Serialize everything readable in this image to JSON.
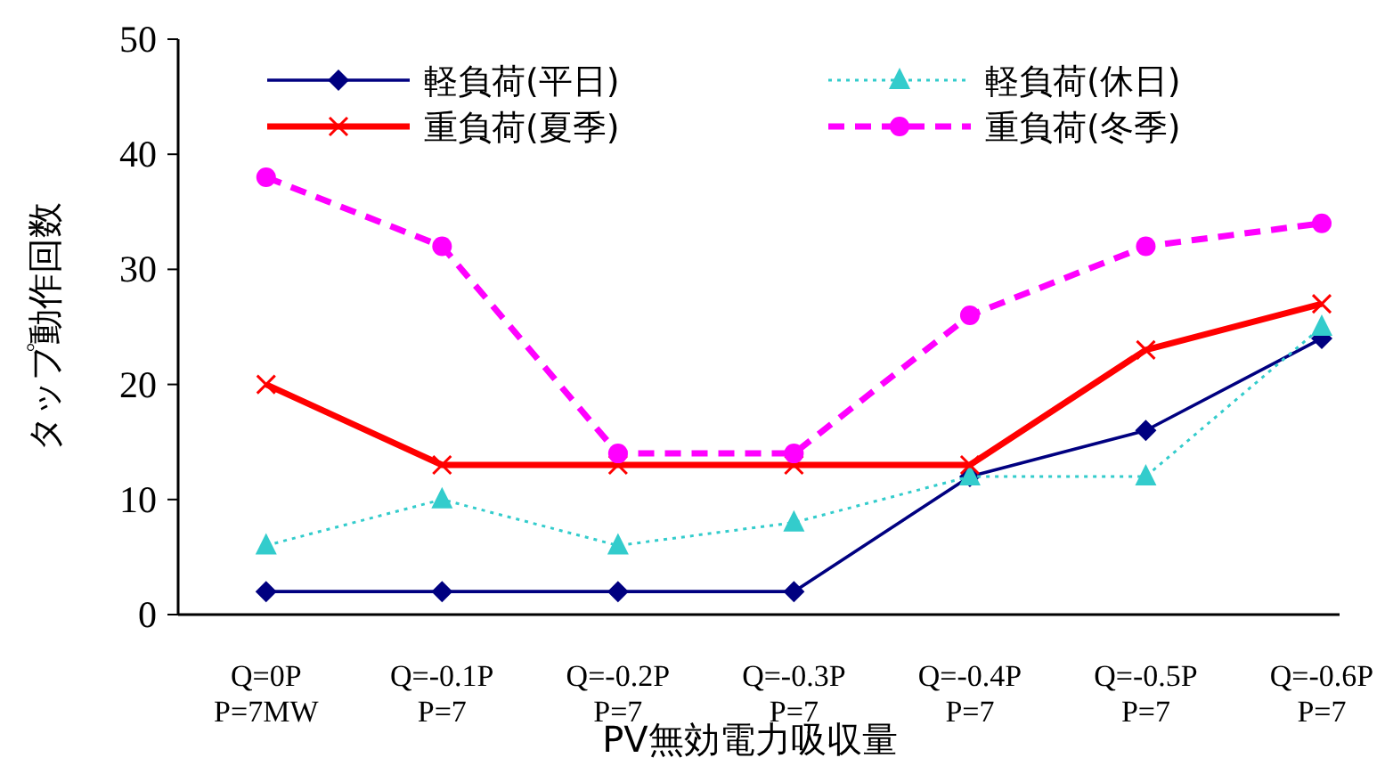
{
  "chart_data": {
    "type": "line",
    "xlabel": "PV無効電力吸収量",
    "ylabel": "タップ動作回数",
    "categories": [
      "Q=0P\nP=7MW",
      "Q=-0.1P\nP=7",
      "Q=-0.2P\nP=7",
      "Q=-0.3P\nP=7",
      "Q=-0.4P\nP=7",
      "Q=-0.5P\nP=7",
      "Q=-0.6P\nP=7"
    ],
    "ylim": [
      0,
      50
    ],
    "yticks": [
      0,
      10,
      20,
      30,
      40,
      50
    ],
    "legend": "top",
    "grid": false,
    "series": [
      {
        "name": "軽負荷(平日)",
        "color": "#000080",
        "marker": "diamond",
        "line_style": "solid",
        "values": [
          2,
          2,
          2,
          2,
          12,
          16,
          24
        ]
      },
      {
        "name": "軽負荷(休日)",
        "color": "#33cccc",
        "marker": "triangle",
        "line_style": "dotted",
        "values": [
          6,
          10,
          6,
          8,
          12,
          12,
          25
        ]
      },
      {
        "name": "重負荷(夏季)",
        "color": "#ff0000",
        "marker": "cross",
        "line_style": "solid",
        "values": [
          20,
          13,
          13,
          13,
          13,
          23,
          27
        ]
      },
      {
        "name": "重負荷(冬季)",
        "color": "#ff00ff",
        "marker": "circle",
        "line_style": "dashed",
        "values": [
          38,
          32,
          14,
          14,
          26,
          32,
          34
        ]
      }
    ]
  }
}
